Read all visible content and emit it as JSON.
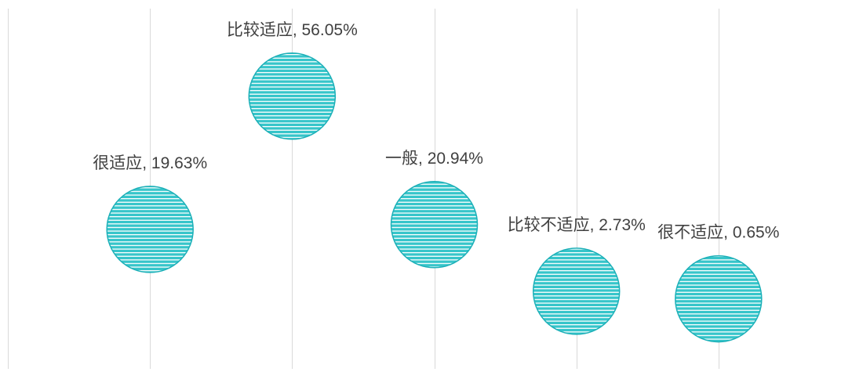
{
  "chart_data": {
    "type": "scatter",
    "subtype": "bubble",
    "xlim": [
      0,
      6
    ],
    "ylim": [
      -20,
      80
    ],
    "grid": {
      "vertical": true,
      "horizontal": false
    },
    "legend": "none",
    "value_unit": "%",
    "points": [
      {
        "category": "很适应",
        "x": 1,
        "y": 19.63
      },
      {
        "category": "比较适应",
        "x": 2,
        "y": 56.05
      },
      {
        "category": "一般",
        "x": 3,
        "y": 20.94
      },
      {
        "category": "比较不适应",
        "x": 4,
        "y": 2.73
      },
      {
        "category": "很不适应",
        "x": 5,
        "y": 0.65
      }
    ]
  },
  "colors": {
    "bubble_fill": "#36c5ca",
    "bubble_stripe": "#ffffff",
    "bubble_outline": "#1db0b8",
    "gridline": "#d9d9d9",
    "label_text": "#404040"
  }
}
